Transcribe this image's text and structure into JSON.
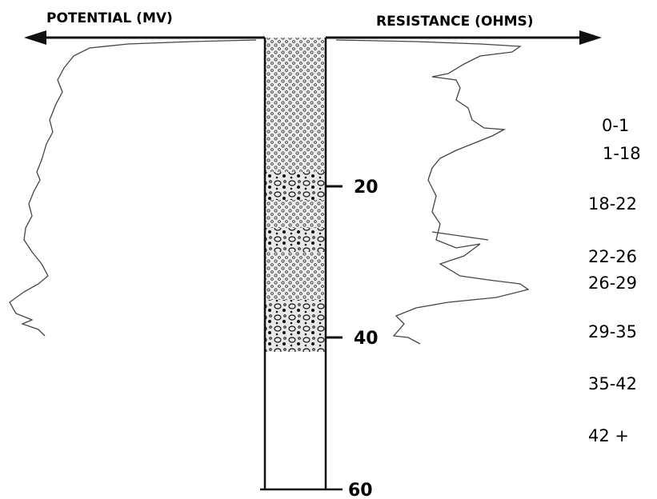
{
  "header": {
    "left_label": "POTENTIAL (MV)",
    "right_label": "RESISTANCE (OHMS)"
  },
  "depth_scale": [
    "20",
    "40",
    "60"
  ],
  "intervals": [
    "0-1",
    "1-18",
    "18-22",
    "22-26",
    "26-29",
    "29-35",
    "35-42",
    "42 +"
  ]
}
